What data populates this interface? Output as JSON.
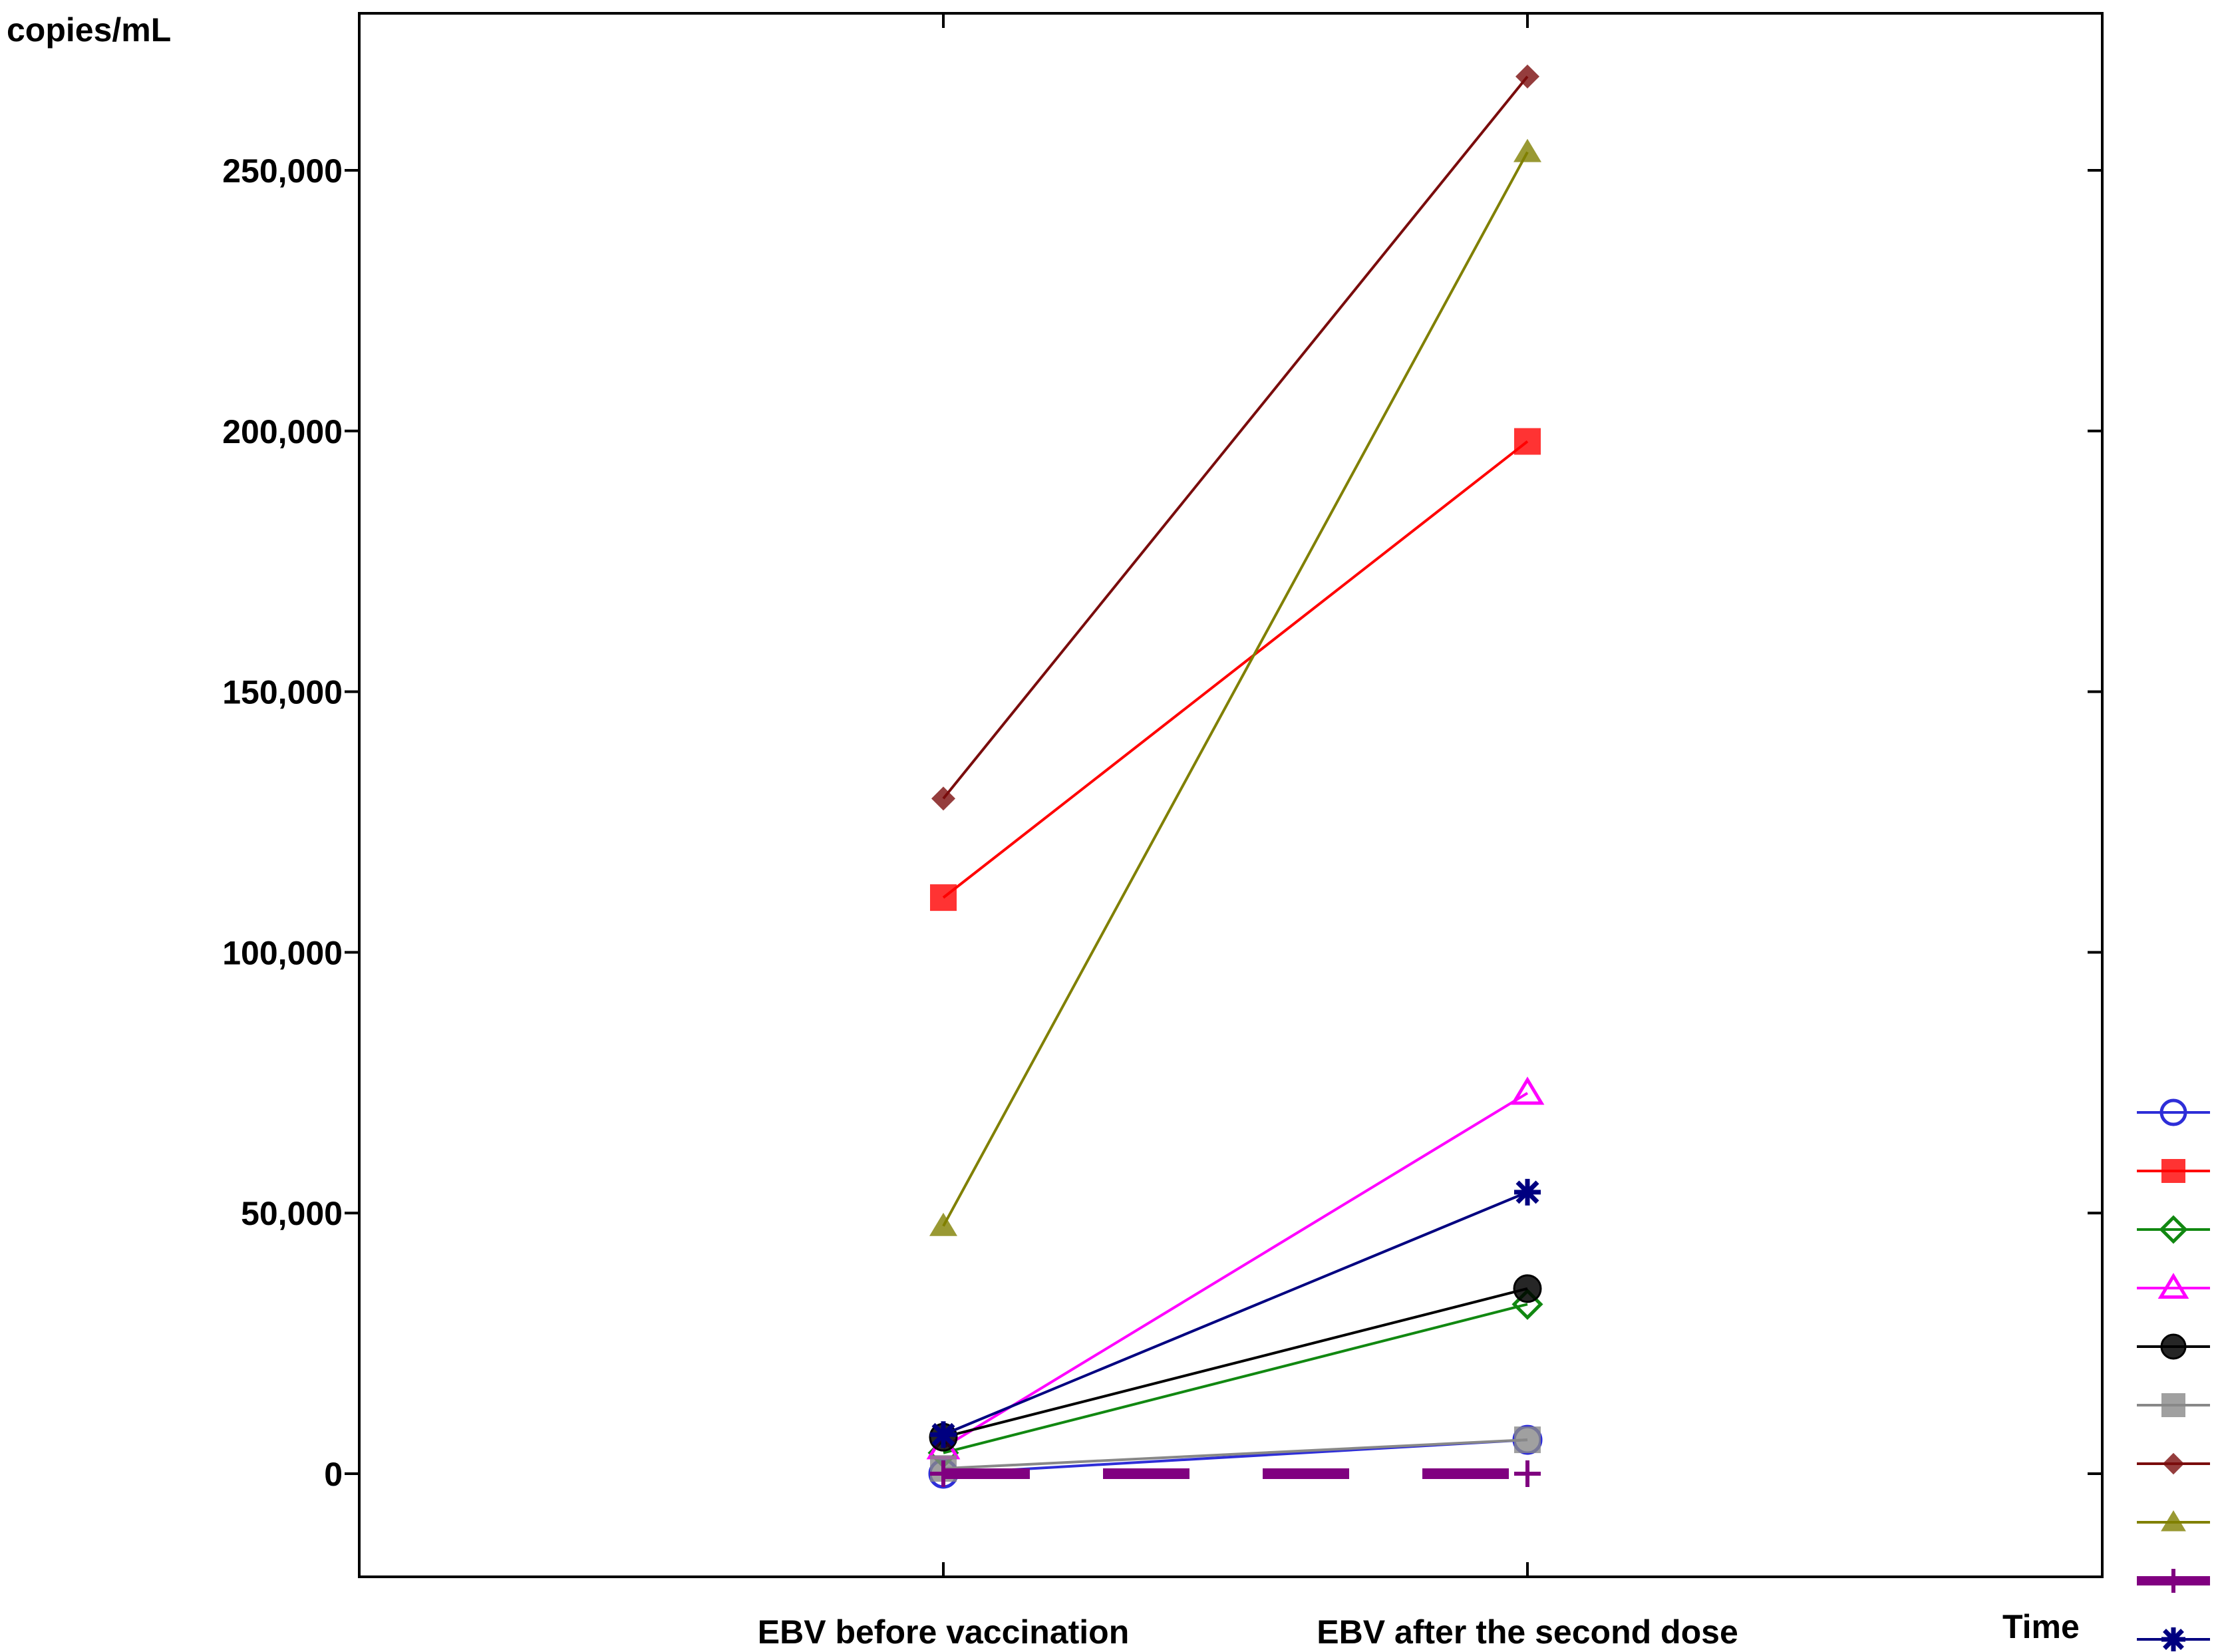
{
  "chart_data": {
    "type": "line",
    "title": "",
    "ylabel": "copies/mL",
    "xlabel": "Time",
    "categories": [
      "EBV before vaccination",
      "EBV after the second dose"
    ],
    "ylim": [
      -20000,
      280000
    ],
    "yticks": [
      0,
      50000,
      100000,
      150000,
      200000,
      250000
    ],
    "ytick_labels": [
      "0",
      "50,000",
      "100,000",
      "150,000",
      "200,000",
      "250,000"
    ],
    "legend_position": "right",
    "series": [
      {
        "name": "",
        "color": "#2e2ed8",
        "marker": "circle-open",
        "values": [
          0,
          6500
        ]
      },
      {
        "name": "",
        "color": "#ff0000",
        "marker": "square-filled",
        "values": [
          110500,
          198000
        ]
      },
      {
        "name": "",
        "color": "#118811",
        "marker": "diamond-open",
        "values": [
          4000,
          32500
        ]
      },
      {
        "name": "",
        "color": "#ff00ff",
        "marker": "triangle-open",
        "values": [
          5000,
          73000
        ]
      },
      {
        "name": "",
        "color": "#000000",
        "marker": "circle-filled",
        "values": [
          7000,
          35500
        ]
      },
      {
        "name": "",
        "color": "#888888",
        "marker": "square-filled",
        "values": [
          1000,
          6500
        ]
      },
      {
        "name": "",
        "color": "#7a0c0c",
        "marker": "diamond-filled",
        "values": [
          129500,
          268000
        ]
      },
      {
        "name": "",
        "color": "#808000",
        "marker": "triangle-filled",
        "values": [
          47500,
          253500
        ]
      },
      {
        "name": "",
        "color": "#800080",
        "marker": "plus",
        "line_style": "dashed",
        "values": [
          0,
          0
        ]
      },
      {
        "name": "",
        "color": "#000080",
        "marker": "asterisk",
        "values": [
          7500,
          54000
        ]
      }
    ]
  }
}
